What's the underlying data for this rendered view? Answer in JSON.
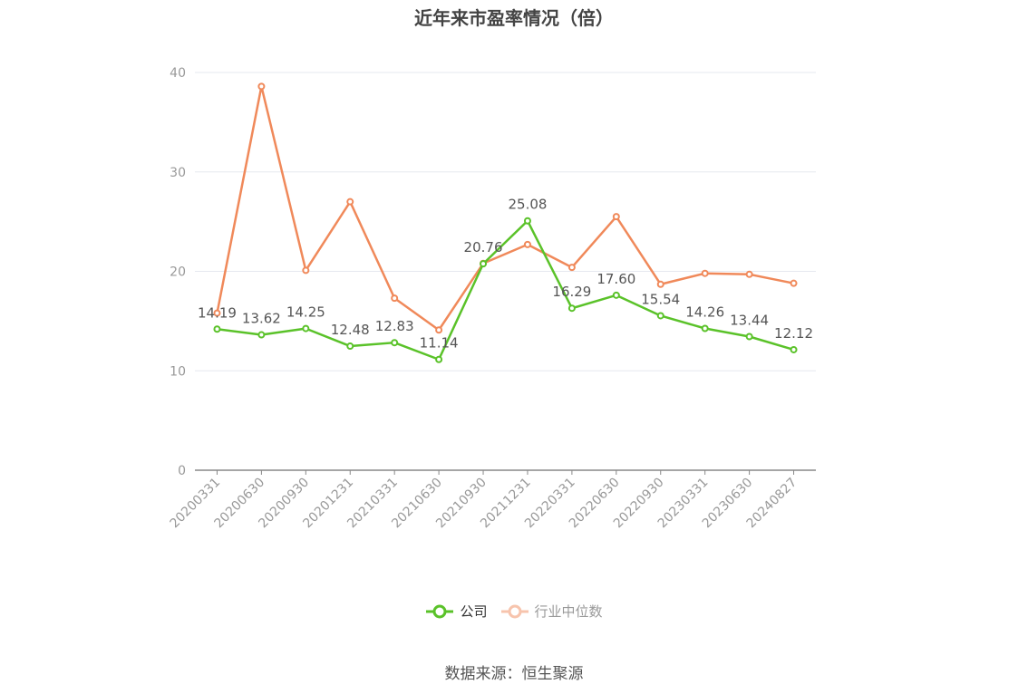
{
  "chart_data": {
    "type": "line",
    "title": "近年来市盈率情况（倍）",
    "categories": [
      "20200331",
      "20200630",
      "20200930",
      "20201231",
      "20210331",
      "20210630",
      "20210930",
      "20211231",
      "20220331",
      "20220630",
      "20220930",
      "20230331",
      "20230630",
      "20240827"
    ],
    "series": [
      {
        "name": "公司",
        "color": "#5ac229",
        "show_labels": true,
        "values": [
          14.19,
          13.62,
          14.25,
          12.48,
          12.83,
          11.14,
          20.76,
          25.08,
          16.29,
          17.6,
          15.54,
          14.26,
          13.44,
          12.12
        ]
      },
      {
        "name": "行业中位数",
        "color": "#f0895a",
        "show_labels": false,
        "values": [
          15.8,
          38.6,
          20.1,
          27.0,
          17.3,
          14.1,
          20.8,
          22.7,
          20.4,
          25.5,
          18.7,
          19.8,
          19.7,
          18.8
        ]
      }
    ],
    "yticks": [
      0,
      10,
      20,
      30,
      40
    ],
    "ylim": [
      0,
      40
    ],
    "grid": true,
    "legend": "bottom-center"
  },
  "source": "数据来源：恒生聚源"
}
